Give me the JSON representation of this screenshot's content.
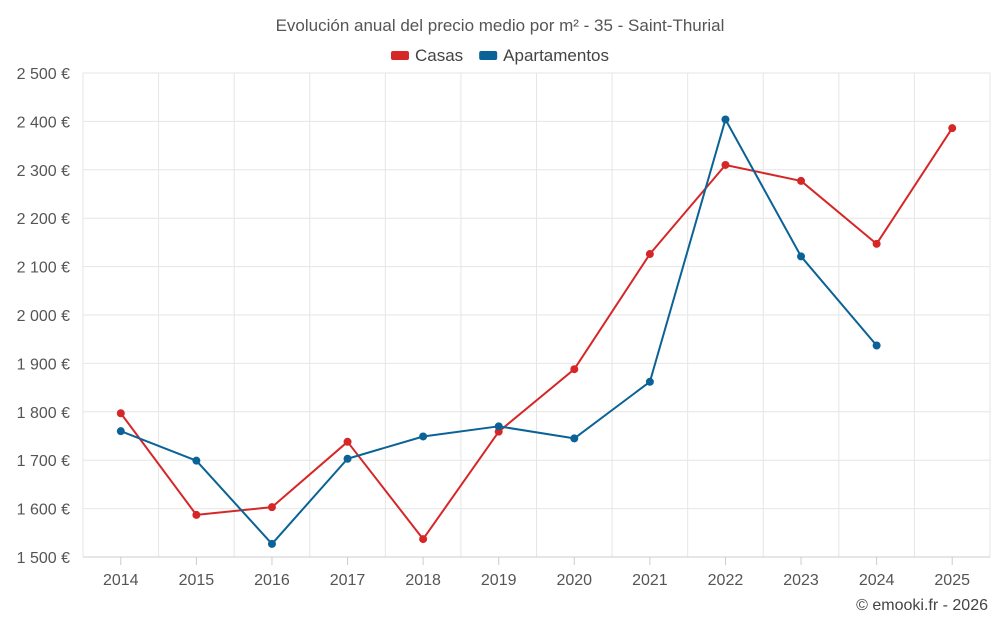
{
  "chart_data": {
    "type": "line",
    "title": "Evolución anual del precio medio por m² - 35 - Saint-Thurial",
    "categories": [
      "2014",
      "2015",
      "2016",
      "2017",
      "2018",
      "2019",
      "2020",
      "2021",
      "2022",
      "2023",
      "2024",
      "2025"
    ],
    "series": [
      {
        "name": "Casas",
        "color": "#d62728",
        "values": [
          1797,
          1587,
          1603,
          1738,
          1537,
          1759,
          1888,
          2126,
          2310,
          2277,
          2147,
          2386
        ]
      },
      {
        "name": "Apartamentos",
        "color": "#0a6296",
        "values": [
          1760,
          1699,
          1527,
          1703,
          1749,
          1770,
          1745,
          1862,
          2404,
          2121,
          1937,
          null
        ]
      }
    ],
    "ylim": [
      1500,
      2500
    ],
    "yticks": [
      1500,
      1600,
      1700,
      1800,
      1900,
      2000,
      2100,
      2200,
      2300,
      2400,
      2500
    ],
    "ytick_labels": [
      "1 500 €",
      "1 600 €",
      "1 700 €",
      "1 800 €",
      "1 900 €",
      "2 000 €",
      "2 100 €",
      "2 200 €",
      "2 300 €",
      "2 400 €",
      "2 500 €"
    ],
    "xlabel": "",
    "ylabel": "",
    "grid": true,
    "legend_position": "top-center"
  },
  "credit": "© emooki.fr - 2026"
}
